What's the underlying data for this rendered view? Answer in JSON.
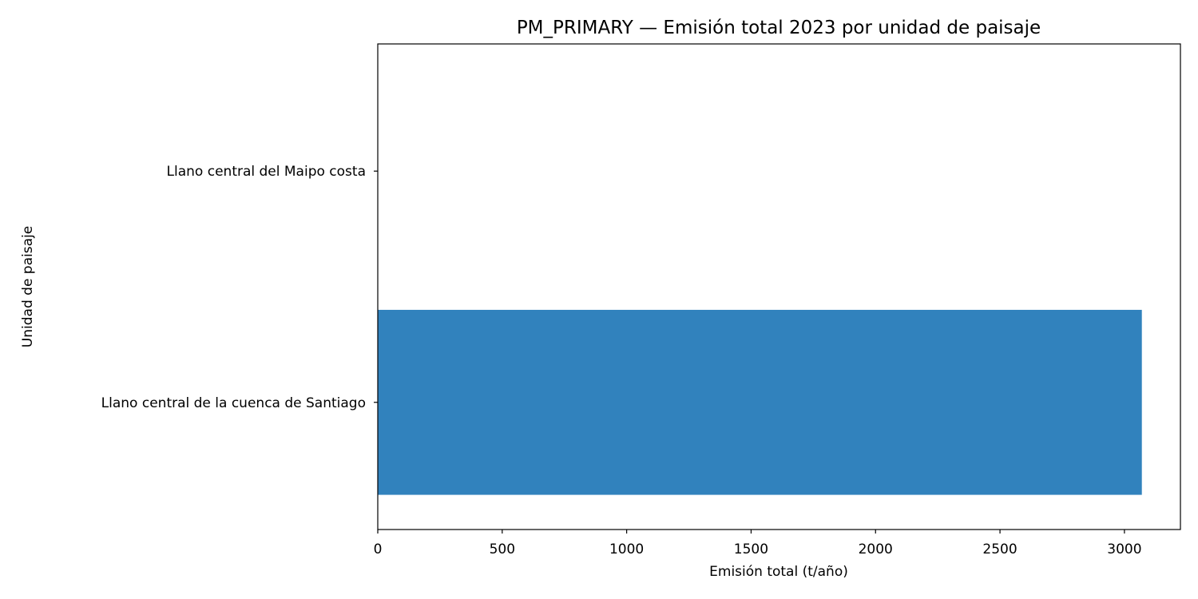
{
  "chart_data": {
    "type": "bar",
    "orientation": "horizontal",
    "title": "PM_PRIMARY — Emisión total 2023 por unidad de paisaje",
    "xlabel": "Emisión total (t/año)",
    "ylabel": "Unidad de paisaje",
    "categories": [
      "Llano central de la cuenca de Santiago",
      "Llano central del Maipo costa"
    ],
    "values": [
      3070,
      0
    ],
    "xlim": [
      0,
      3225
    ],
    "xticks": [
      0,
      500,
      1000,
      1500,
      2000,
      2500,
      3000
    ],
    "bar_color": "#3182bd",
    "grid": false,
    "legend": "none"
  }
}
